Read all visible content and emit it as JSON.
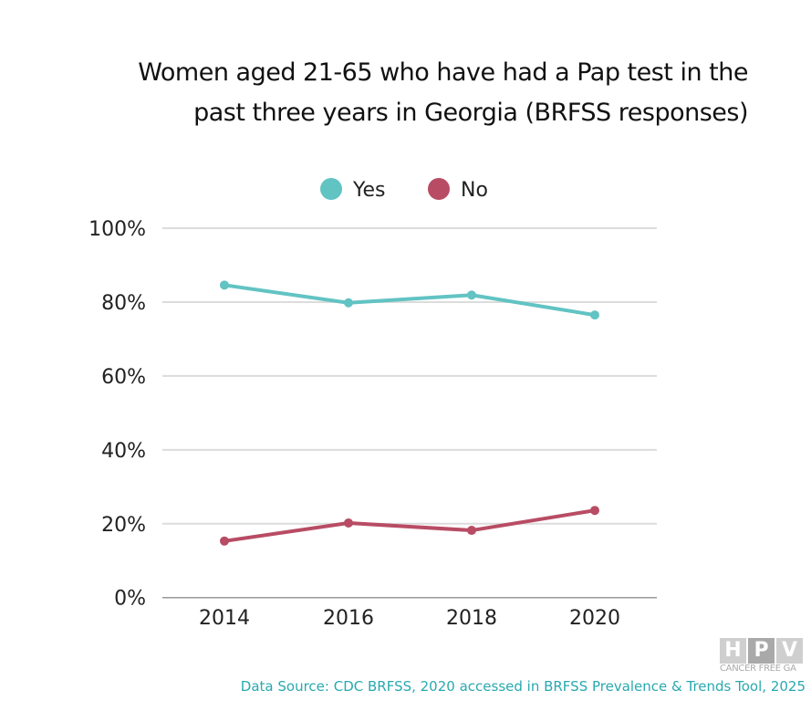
{
  "chart_data": {
    "type": "line",
    "title": "Women aged 21-65 who have had a Pap test in the past three years in Georgia (BRFSS responses)",
    "title_lines": [
      "Women aged 21-65 who have had a Pap test in the",
      "past three years in Georgia (BRFSS responses)"
    ],
    "x": [
      "2014",
      "2016",
      "2018",
      "2020"
    ],
    "series": [
      {
        "name": "Yes",
        "color": "#62c3c3",
        "values": [
          84.6,
          79.8,
          81.9,
          76.5
        ]
      },
      {
        "name": "No",
        "color": "#b84c64",
        "values": [
          15.3,
          20.2,
          18.2,
          23.6
        ]
      }
    ],
    "ylim": [
      0,
      100
    ],
    "yticks": [
      0,
      20,
      40,
      60,
      80,
      100
    ],
    "ytick_labels": [
      "0%",
      "20%",
      "40%",
      "60%",
      "80%",
      "100%"
    ],
    "xlabel": "",
    "ylabel": "",
    "grid": true,
    "legend_position": "top-center"
  },
  "source": "Data Source: CDC BRFSS, 2020 accessed in BRFSS Prevalence & Trends Tool, 2025",
  "logo": {
    "letters": [
      "H",
      "P",
      "V"
    ],
    "subtitle": "CANCER FREE GA"
  }
}
